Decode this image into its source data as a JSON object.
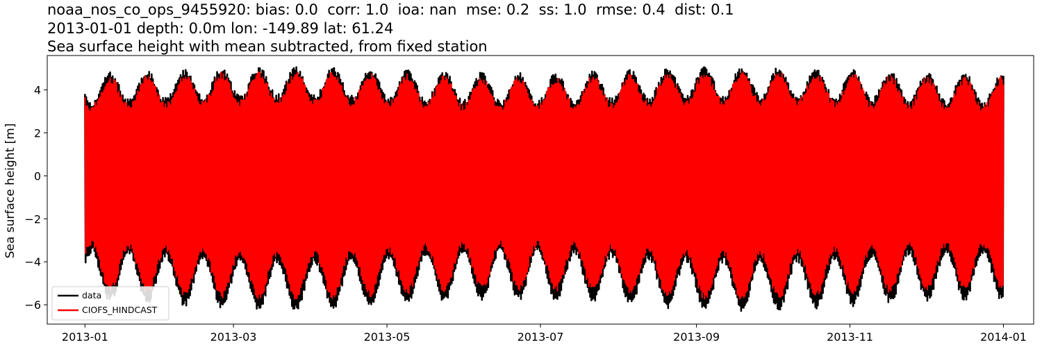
{
  "chart_data": {
    "type": "line",
    "title_lines": [
      "noaa_nos_co_ops_9455920: bias: 0.0  corr: 1.0  ioa: nan  mse: 0.2  ss: 1.0  rmse: 0.4  dist: 0.1",
      "2013-01-01 depth: 0.0m lon: -149.89 lat: 61.24",
      "Sea surface height with mean subtracted, from fixed station"
    ],
    "xlabel": "",
    "ylabel": "Sea surface height [m]",
    "xlim": [
      "2012-12-17",
      "2014-01-13"
    ],
    "ylim": [
      -6.9,
      5.6
    ],
    "x_ticks": [
      "2013-01",
      "2013-03",
      "2013-05",
      "2013-07",
      "2013-09",
      "2013-11",
      "2014-01"
    ],
    "y_ticks": [
      4,
      2,
      0,
      -2,
      -4,
      -6
    ],
    "grid": false,
    "legend_position": "lower-left",
    "series": [
      {
        "name": "data",
        "color": "#000000",
        "x_range": [
          "2013-01-01",
          "2014-01-01"
        ],
        "tidal_envelope": {
          "high_peak": 5.1,
          "high_trough": 3.5,
          "low_trough": -6.3,
          "low_peak": -3.6
        }
      },
      {
        "name": "CIOFS_HINDCAST",
        "color": "#ff0000",
        "x_range": [
          "2013-01-01",
          "2014-01-01"
        ],
        "tidal_envelope": {
          "high_peak": 4.9,
          "high_trough": 3.3,
          "low_trough": -5.8,
          "low_peak": -3.3
        }
      }
    ]
  }
}
